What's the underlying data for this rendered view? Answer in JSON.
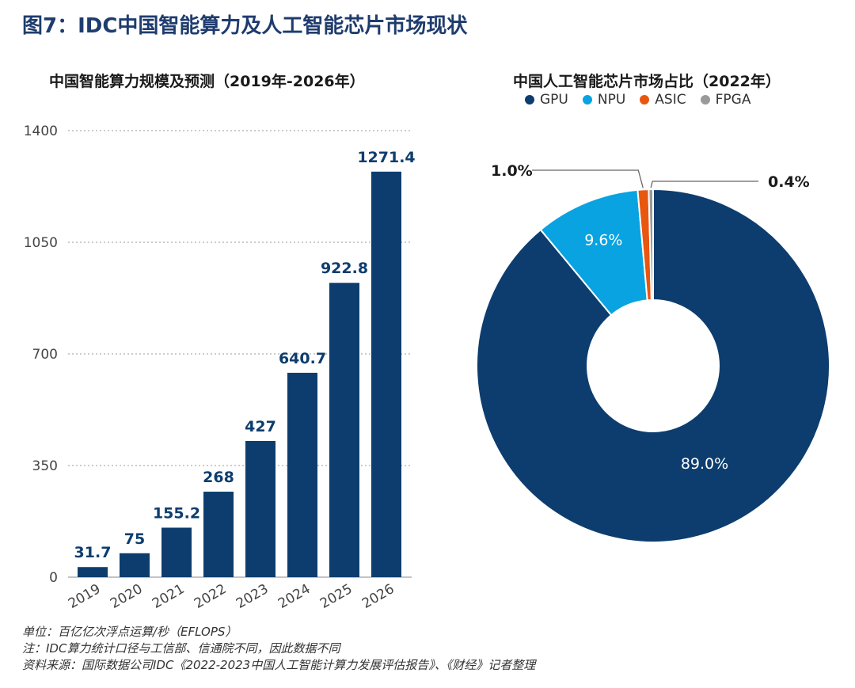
{
  "figure_title": "图7：IDC中国智能算力及人工智能芯片市场现状",
  "notes": [
    "单位：百亿亿次浮点运算/秒（EFLOPS）",
    "注：IDC算力统计口径与工信部、信通院不同，因此数据不同",
    "资料来源：国际数据公司IDC《2022-2023中国人工智能计算力发展评估报告》、《财经》记者整理"
  ],
  "chart_data": [
    {
      "type": "bar",
      "title": "中国智能算力规模及预测（2019年-2026年）",
      "categories": [
        "2019",
        "2020",
        "2021",
        "2022",
        "2023",
        "2024",
        "2025",
        "2026"
      ],
      "values": [
        31.7,
        75,
        155.2,
        268,
        427,
        640.7,
        922.8,
        1271.4
      ],
      "value_labels": [
        "31.7",
        "75",
        "155.2",
        "268",
        "427",
        "640.7",
        "922.8",
        "1271.4"
      ],
      "yticks": [
        "0",
        "350",
        "700",
        "1050",
        "1400"
      ],
      "ylim": [
        0,
        1400
      ],
      "grid": true,
      "color": "#0d3d6e"
    },
    {
      "type": "pie",
      "title": "中国人工智能芯片市场占比（2022年）",
      "labels": [
        "GPU",
        "NPU",
        "ASIC",
        "FPGA"
      ],
      "values": [
        89.0,
        9.6,
        1.0,
        0.4
      ],
      "value_labels": [
        "89.0%",
        "9.6%",
        "1.0%",
        "0.4%"
      ],
      "colors": [
        "#0d3d6e",
        "#08a3e0",
        "#e8560f",
        "#9a9a9a"
      ],
      "donut": true,
      "legend_position": "top"
    }
  ]
}
